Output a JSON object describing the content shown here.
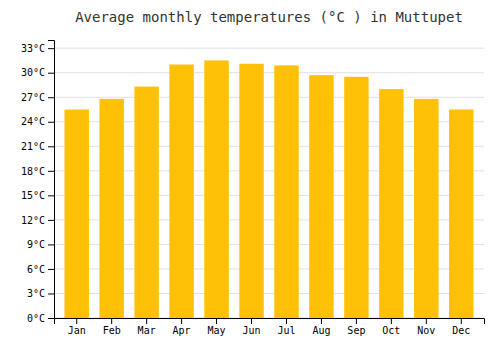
{
  "chart_data": {
    "type": "bar",
    "title": "Average monthly temperatures (°C ) in Muttupet",
    "categories": [
      "Jan",
      "Feb",
      "Mar",
      "Apr",
      "May",
      "Jun",
      "Jul",
      "Aug",
      "Sep",
      "Oct",
      "Nov",
      "Dec"
    ],
    "values": [
      25.5,
      26.8,
      28.3,
      31.0,
      31.5,
      31.1,
      30.9,
      29.7,
      29.5,
      28.0,
      26.8,
      25.5
    ],
    "color": "#FFC107",
    "ylim": [
      0,
      34
    ],
    "yticks": [
      {
        "value": 0,
        "label": "0°C"
      },
      {
        "value": 3,
        "label": "3°C"
      },
      {
        "value": 6,
        "label": "6°C"
      },
      {
        "value": 9,
        "label": "9°C"
      },
      {
        "value": 12,
        "label": "12°C"
      },
      {
        "value": 15,
        "label": "15°C"
      },
      {
        "value": 18,
        "label": "18°C"
      },
      {
        "value": 21,
        "label": "21°C"
      },
      {
        "value": 24,
        "label": "24°C"
      },
      {
        "value": 27,
        "label": "27°C"
      },
      {
        "value": 30,
        "label": "30°C"
      },
      {
        "value": 33,
        "label": "33°C"
      }
    ],
    "grid": true
  }
}
